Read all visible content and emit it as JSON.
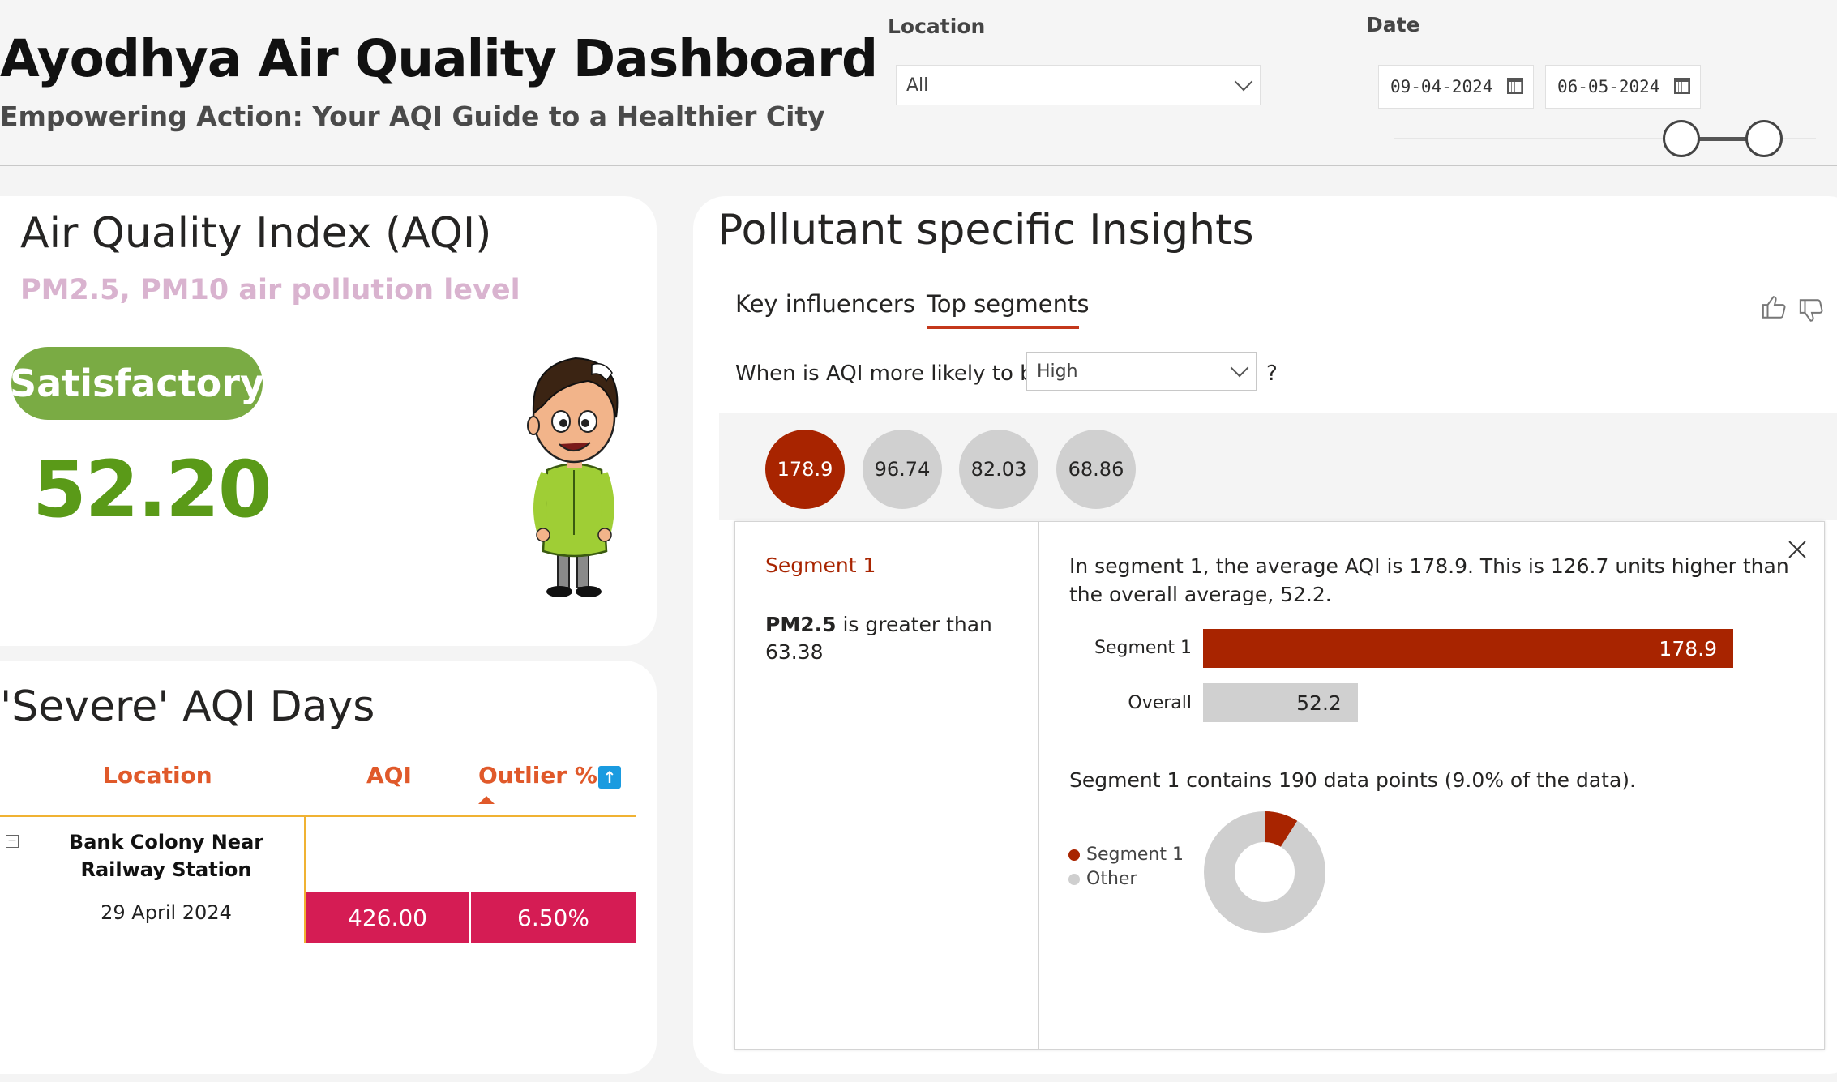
{
  "header": {
    "title": "Ayodhya Air Quality Dashboard",
    "subtitle": "Empowering Action: Your AQI Guide to a Healthier City",
    "location_label": "Location",
    "location_value": "All",
    "date_label": "Date",
    "date_start": "09-04-2024",
    "date_end": "06-05-2024",
    "date_range_fraction": [
      0.68,
      0.88
    ]
  },
  "aqi_card": {
    "title": "Air Quality Index (AQI)",
    "subtitle": "PM2.5, PM10 air pollution level",
    "status": "Satisfactory",
    "value": "52.20",
    "status_color": "#7aab44",
    "value_color": "#5a9a18"
  },
  "severe_card": {
    "title": "'Severe' AQI Days",
    "columns": [
      "Location",
      "AQI",
      "Outlier %"
    ],
    "rows": [
      {
        "location": "Bank Colony Near Railway Station",
        "date": "29 April 2024",
        "aqi": "426.00",
        "outlier": "6.50%"
      }
    ],
    "highlight_color": "#d51c54"
  },
  "pollutant_card": {
    "title": "Pollutant specific Insights",
    "tabs": [
      "Key influencers",
      "Top segments"
    ],
    "active_tab": "Top segments",
    "question_prefix": "When is AQI more likely to be",
    "question_value": "High",
    "question_suffix": "?",
    "bubbles": [
      "178.9",
      "96.74",
      "82.03",
      "68.86"
    ],
    "segment": {
      "title": "Segment 1",
      "condition_field": "PM2.5",
      "condition_text": " is greater than 63.38",
      "description": "In segment 1, the average AQI is 178.9. This is 126.7 units higher than the overall average, 52.2.",
      "bars": [
        {
          "label": "Segment 1",
          "value": 178.9,
          "display": "178.9",
          "color": "#a82400",
          "text_color": "#ffffff"
        },
        {
          "label": "Overall",
          "value": 52.2,
          "display": "52.2",
          "color": "#d0d0d0",
          "text_color": "#252423"
        }
      ],
      "count_text": "Segment 1 contains 190 data points (9.0% of the data).",
      "share_fraction": 0.09,
      "legend": [
        {
          "label": "Segment 1",
          "color": "#a82400"
        },
        {
          "label": "Other",
          "color": "#cfcfcf"
        }
      ]
    }
  },
  "colors": {
    "accent": "#c4381b",
    "table_header": "#e0592a"
  }
}
